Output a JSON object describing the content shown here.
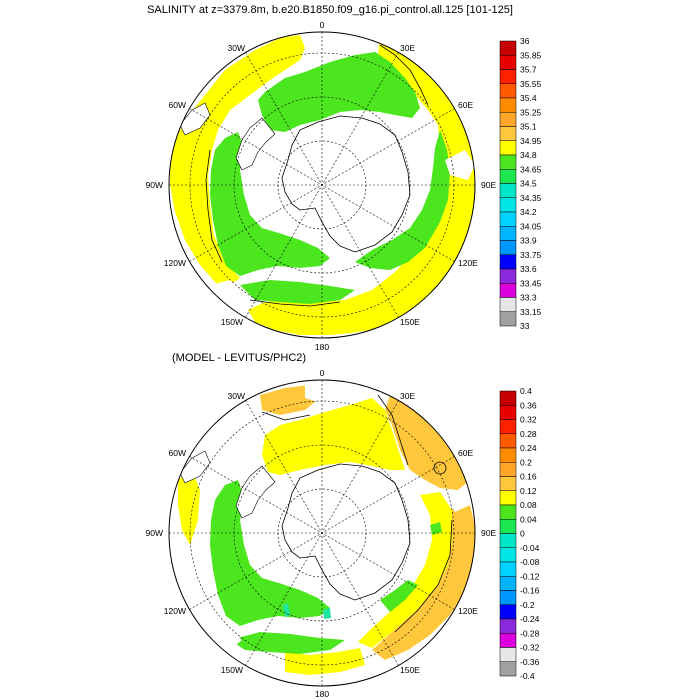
{
  "top_panel": {
    "title": "SALINITY at z=3379.8m, b.e20.B1850.f09_g16.pi_control.all.125 [101-125]",
    "colorbar": {
      "labels": [
        "36",
        "35.85",
        "35.7",
        "35.55",
        "35.4",
        "35.25",
        "35.1",
        "34.95",
        "34.8",
        "34.65",
        "34.5",
        "34.35",
        "34.2",
        "34.05",
        "33.9",
        "33.75",
        "33.6",
        "33.45",
        "33.3",
        "33.15",
        "33"
      ],
      "colors": [
        "#c60000",
        "#e60000",
        "#ff2000",
        "#ff5a00",
        "#ff8c00",
        "#ffa528",
        "#ffc83c",
        "#ffff00",
        "#4ce61e",
        "#1ee650",
        "#00e6c8",
        "#00e6e6",
        "#00d2ff",
        "#00b4ff",
        "#0096ff",
        "#0000ff",
        "#8c28dc",
        "#dc00dc",
        "#e6e6e6",
        "#a0a0a0"
      ]
    }
  },
  "bottom_panel": {
    "title": "(MODEL - LEVITUS/PHC2)",
    "colorbar": {
      "labels": [
        "0.4",
        "0.36",
        "0.32",
        "0.28",
        "0.24",
        "0.2",
        "0.16",
        "0.12",
        "0.08",
        "0.04",
        "0",
        "-0.04",
        "-0.08",
        "-0.12",
        "-0.16",
        "-0.2",
        "-0.24",
        "-0.28",
        "-0.32",
        "-0.36",
        "-0.4"
      ],
      "colors": [
        "#c60000",
        "#e60000",
        "#ff2000",
        "#ff5a00",
        "#ff8c00",
        "#ffa528",
        "#ffc83c",
        "#ffff00",
        "#4ce61e",
        "#1ee650",
        "#00e6c8",
        "#00e6e6",
        "#00d2ff",
        "#00b4ff",
        "#0096ff",
        "#0000ff",
        "#8c28dc",
        "#dc00dc",
        "#e6e6e6",
        "#a0a0a0"
      ]
    }
  },
  "longitude_labels": {
    "lon_0": "0",
    "lon_30e": "30E",
    "lon_60e": "60E",
    "lon_90e": "90E",
    "lon_120e": "120E",
    "lon_150e": "150E",
    "lon_180": "180",
    "lon_150w": "150W",
    "lon_120w": "120W",
    "lon_90w": "90W",
    "lon_60w": "60W",
    "lon_30w": "30W"
  },
  "colors": {
    "ocean_yellow": "#ffff00",
    "ocean_green": "#4ce61e",
    "ocean_orange": "#ffc83c",
    "ocean_cyan": "#1ee6a0",
    "land_outline": "#000000",
    "grid_line": "#000000"
  }
}
